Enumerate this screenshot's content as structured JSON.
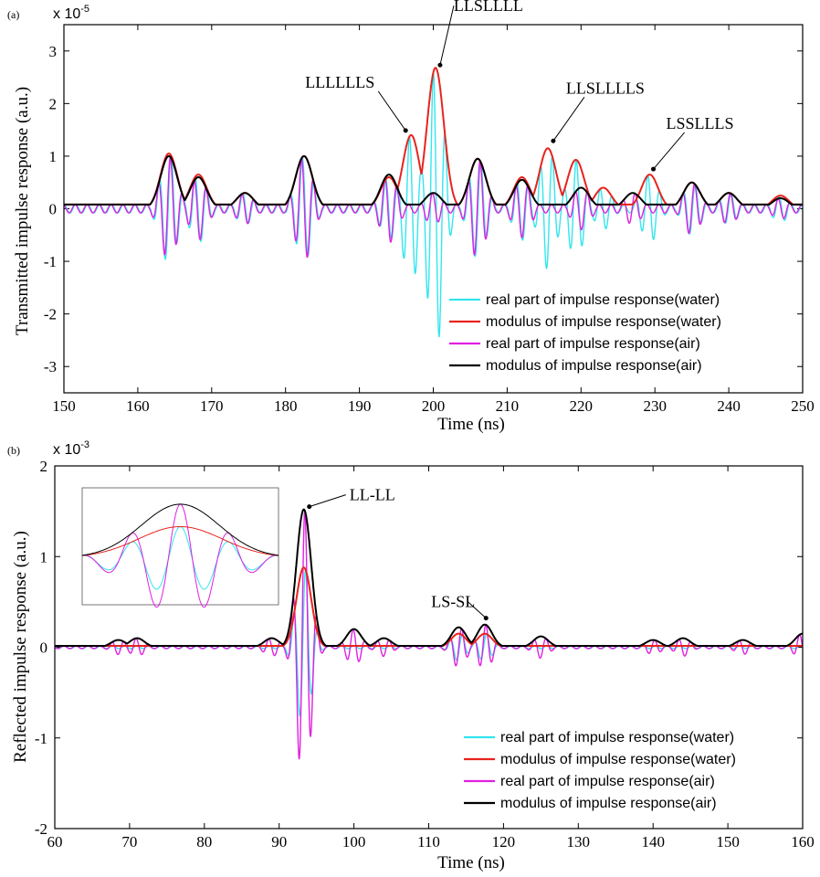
{
  "chart_data": [
    {
      "type": "line",
      "panel_label": "(a)",
      "exponent_label": "x 10",
      "exponent_power": "-5",
      "xlabel": "Time (ns)",
      "ylabel": "Transmitted impulse response (a.u.)",
      "xlim": [
        150,
        250
      ],
      "ylim": [
        -3.5,
        3.5
      ],
      "xticks": [
        "150",
        "160",
        "170",
        "180",
        "190",
        "200",
        "210",
        "220",
        "230",
        "240",
        "250"
      ],
      "yticks": [
        "3",
        "2",
        "1",
        "0",
        "-1",
        "-2",
        "-3"
      ],
      "legend_position": "lower-right",
      "series": [
        {
          "name": "real part of impulse response(water)",
          "color": "#33e6ee"
        },
        {
          "name": "modulus of impulse response(water)",
          "color": "#e8231e"
        },
        {
          "name": "real part of impulse response(air)",
          "color": "#e020e0"
        },
        {
          "name": "modulus of impulse response(air)",
          "color": "#000000"
        }
      ],
      "envelope_peaks_water": [
        [
          164.2,
          1.05
        ],
        [
          168.2,
          0.65
        ],
        [
          174.5,
          0.3
        ],
        [
          182.5,
          1.0
        ],
        [
          194,
          0.6
        ],
        [
          197,
          1.4
        ],
        [
          200.3,
          2.68
        ],
        [
          206,
          0.95
        ],
        [
          212,
          0.6
        ],
        [
          215.5,
          1.15
        ],
        [
          219.3,
          0.93
        ],
        [
          223,
          0.4
        ],
        [
          229.3,
          0.65
        ],
        [
          235,
          0.5
        ],
        [
          240,
          0.3
        ],
        [
          247,
          0.25
        ]
      ],
      "envelope_peaks_air": [
        [
          164.2,
          1.0
        ],
        [
          168.2,
          0.6
        ],
        [
          174.5,
          0.3
        ],
        [
          182.5,
          1.0
        ],
        [
          194,
          0.65
        ],
        [
          200,
          0.3
        ],
        [
          206,
          0.95
        ],
        [
          212,
          0.55
        ],
        [
          220,
          0.4
        ],
        [
          227,
          0.3
        ],
        [
          235,
          0.5
        ],
        [
          240,
          0.3
        ],
        [
          247,
          0.2
        ]
      ],
      "annotations": [
        {
          "text": "LLSLLLL",
          "x": 200.3,
          "y": 2.68
        },
        {
          "text": "LLLLLLS",
          "x": 197,
          "y": 1.4
        },
        {
          "text": "LLSLLLLS",
          "x": 215.5,
          "y": 1.15
        },
        {
          "text": "LSSLLLS",
          "x": 229.3,
          "y": 0.65
        }
      ]
    },
    {
      "type": "line",
      "panel_label": "(b)",
      "exponent_label": "x 10",
      "exponent_power": "-3",
      "xlabel": "Time (ns)",
      "ylabel": "Reflected impulse response (a.u.)",
      "xlim": [
        60,
        160
      ],
      "ylim": [
        -2,
        2
      ],
      "xticks": [
        "60",
        "70",
        "80",
        "90",
        "100",
        "110",
        "120",
        "130",
        "140",
        "150",
        "160"
      ],
      "yticks": [
        "2",
        "1",
        "0",
        "-1",
        "-2"
      ],
      "legend_position": "lower-right",
      "series": [
        {
          "name": "real part of impulse response(water)",
          "color": "#33e6ee"
        },
        {
          "name": "modulus of impulse response(water)",
          "color": "#e8231e"
        },
        {
          "name": "real part of impulse response(air)",
          "color": "#e020e0"
        },
        {
          "name": "modulus of impulse response(air)",
          "color": "#000000"
        }
      ],
      "envelope_peaks_air": [
        [
          68.5,
          0.08
        ],
        [
          71,
          0.1
        ],
        [
          89,
          0.1
        ],
        [
          93.3,
          1.52
        ],
        [
          100,
          0.2
        ],
        [
          104,
          0.1
        ],
        [
          114,
          0.22
        ],
        [
          117.5,
          0.25
        ],
        [
          125,
          0.12
        ],
        [
          140,
          0.08
        ],
        [
          144,
          0.1
        ],
        [
          152,
          0.08
        ],
        [
          160,
          0.15
        ]
      ],
      "envelope_peaks_water": [
        [
          93.3,
          0.88
        ],
        [
          114,
          0.15
        ],
        [
          117.5,
          0.15
        ]
      ],
      "annotations": [
        {
          "text": "LL-LL",
          "x": 93.3,
          "y": 1.52
        },
        {
          "text": "LS-SL",
          "x": 114,
          "y": 0.22
        }
      ],
      "inset": {
        "note": "zoom of the LL-LL peak"
      }
    }
  ]
}
